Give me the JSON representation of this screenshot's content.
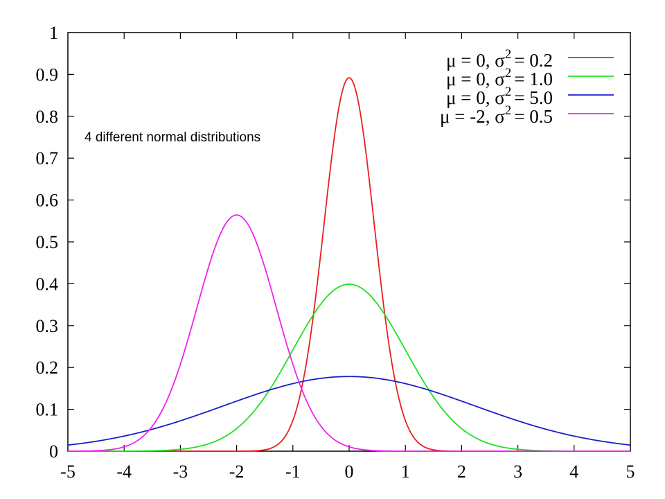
{
  "chart_data": {
    "type": "line",
    "annotation": "4 different normal distributions",
    "xlim": [
      -5,
      5
    ],
    "ylim": [
      0,
      1
    ],
    "x_ticks": [
      "-5",
      "-4",
      "-3",
      "-2",
      "-1",
      "0",
      "1",
      "2",
      "3",
      "4",
      "5"
    ],
    "y_ticks": [
      "0",
      "0.1",
      "0.2",
      "0.3",
      "0.4",
      "0.5",
      "0.6",
      "0.7",
      "0.8",
      "0.9",
      "1"
    ],
    "grid": false,
    "legend_position": "top-right",
    "series": [
      {
        "name": "μ = 0, σ² = 0.2",
        "mu_label": "μ = 0, σ",
        "sup": "2",
        "var_label": "= 0.2",
        "mu": 0,
        "variance": 0.2,
        "color": "#e8201e"
      },
      {
        "name": "μ = 0, σ² = 1.0",
        "mu_label": "μ = 0, σ",
        "sup": "2",
        "var_label": "= 1.0",
        "mu": 0,
        "variance": 1.0,
        "color": "#1fe01f"
      },
      {
        "name": "μ = 0, σ² = 5.0",
        "mu_label": "μ = 0, σ",
        "sup": "2",
        "var_label": "= 5.0",
        "mu": 0,
        "variance": 5.0,
        "color": "#1a1ec8"
      },
      {
        "name": "μ = -2, σ² = 0.5",
        "mu_label": "μ = -2, σ",
        "sup": "2",
        "var_label": "= 0.5",
        "mu": -2,
        "variance": 0.5,
        "color": "#ef22ef"
      }
    ]
  }
}
